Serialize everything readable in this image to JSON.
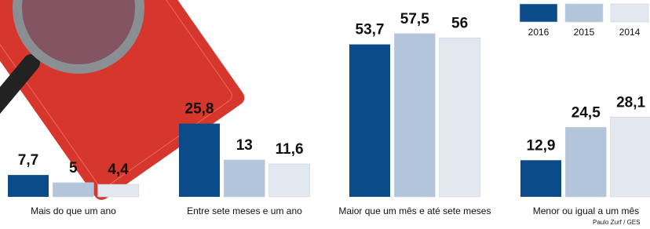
{
  "chart_data": {
    "type": "bar",
    "categories": [
      "Mais do que um ano",
      "Entre sete meses e um ano",
      "Maior que um mês e até sete meses",
      "Menor ou igual a um mês"
    ],
    "series": [
      {
        "name": "2016",
        "color": "#0b4b8a",
        "values": [
          7.7,
          25.8,
          53.7,
          12.9
        ],
        "value_labels": [
          "7,7",
          "25,8",
          "53,7",
          "12,9"
        ]
      },
      {
        "name": "2015",
        "color": "#b3c5db",
        "values": [
          5,
          13,
          57.5,
          24.5
        ],
        "value_labels": [
          "5",
          "13",
          "57,5",
          "24,5"
        ]
      },
      {
        "name": "2014",
        "color": "#e3e8f0",
        "values": [
          4.4,
          11.6,
          56,
          28.1
        ],
        "value_labels": [
          "4,4",
          "11,6",
          "56",
          "28,1"
        ]
      }
    ],
    "credit": "Paulo Zurf / GES"
  }
}
